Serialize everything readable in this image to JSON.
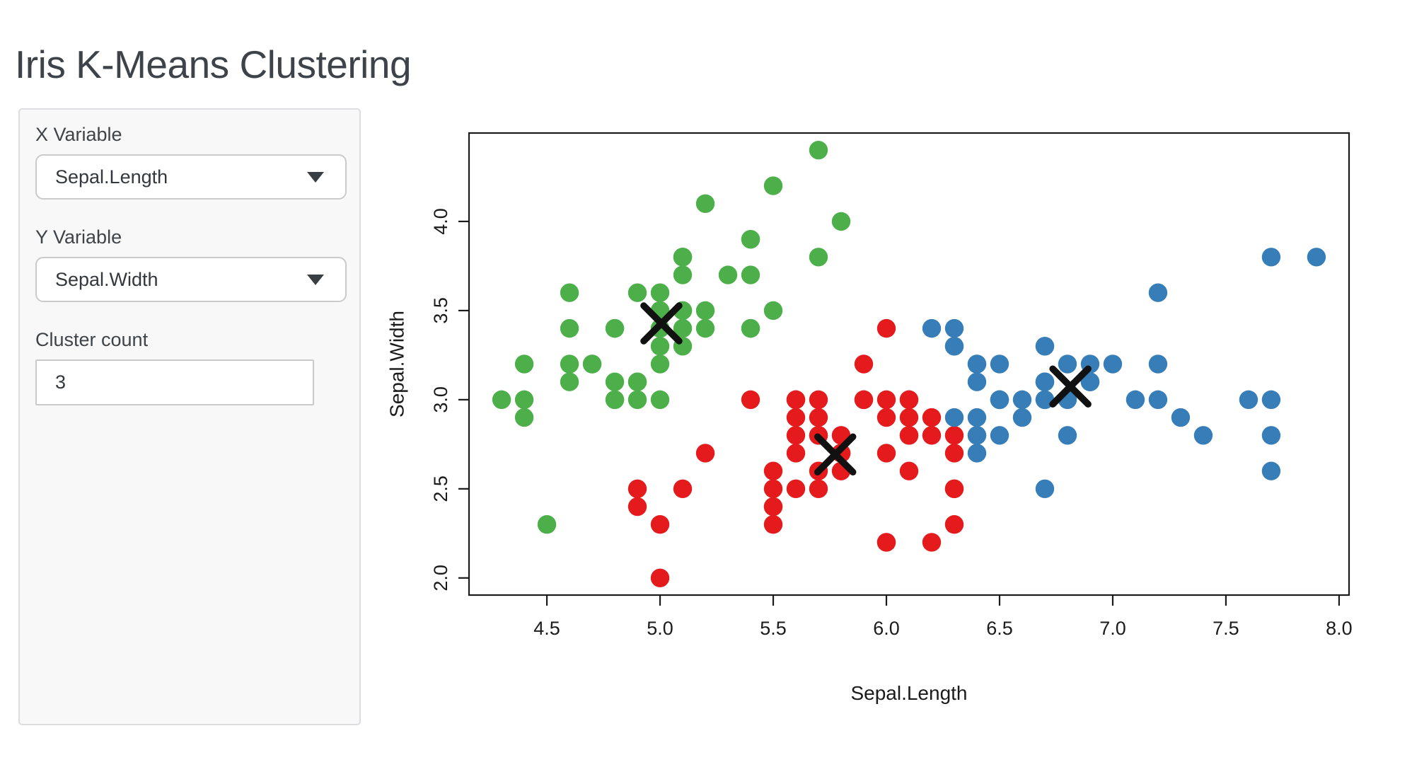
{
  "page": {
    "title": "Iris K-Means Clustering"
  },
  "sidebar": {
    "x_variable": {
      "label": "X Variable",
      "value": "Sepal.Length"
    },
    "y_variable": {
      "label": "Y Variable",
      "value": "Sepal.Width"
    },
    "cluster_count": {
      "label": "Cluster count",
      "value": "3"
    }
  },
  "chart_data": {
    "type": "scatter",
    "xlabel": "Sepal.Length",
    "ylabel": "Sepal.Width",
    "xlim": [
      4.156,
      8.044
    ],
    "ylim": [
      1.904,
      4.496
    ],
    "xticks": [
      4.5,
      5.0,
      5.5,
      6.0,
      6.5,
      7.0,
      7.5,
      8.0
    ],
    "yticks": [
      2.0,
      2.5,
      3.0,
      3.5,
      4.0
    ],
    "grid": false,
    "legend": "none",
    "point_radius_px": 13.2,
    "centroid_marker": {
      "shape": "x",
      "half_size_px": 25,
      "stroke_px": 9.5,
      "color": "#111111"
    },
    "axis_color": "#1b1b1b",
    "series": [
      {
        "name": "cluster-green",
        "color": "#4DAF4A",
        "center": [
          5.006,
          3.428
        ],
        "points": [
          [
            5.1,
            3.5
          ],
          [
            4.9,
            3.0
          ],
          [
            4.7,
            3.2
          ],
          [
            4.6,
            3.1
          ],
          [
            5.0,
            3.6
          ],
          [
            5.4,
            3.9
          ],
          [
            4.6,
            3.4
          ],
          [
            5.0,
            3.4
          ],
          [
            4.4,
            2.9
          ],
          [
            4.9,
            3.1
          ],
          [
            5.4,
            3.7
          ],
          [
            4.8,
            3.4
          ],
          [
            4.8,
            3.0
          ],
          [
            4.3,
            3.0
          ],
          [
            5.8,
            4.0
          ],
          [
            5.7,
            4.4
          ],
          [
            5.4,
            3.9
          ],
          [
            5.1,
            3.5
          ],
          [
            5.7,
            3.8
          ],
          [
            5.1,
            3.8
          ],
          [
            5.4,
            3.4
          ],
          [
            5.1,
            3.7
          ],
          [
            4.6,
            3.6
          ],
          [
            5.1,
            3.3
          ],
          [
            4.8,
            3.4
          ],
          [
            5.0,
            3.0
          ],
          [
            5.0,
            3.4
          ],
          [
            5.2,
            3.5
          ],
          [
            5.2,
            3.4
          ],
          [
            4.7,
            3.2
          ],
          [
            4.8,
            3.1
          ],
          [
            5.4,
            3.4
          ],
          [
            5.2,
            4.1
          ],
          [
            5.5,
            4.2
          ],
          [
            4.9,
            3.1
          ],
          [
            5.0,
            3.2
          ],
          [
            5.5,
            3.5
          ],
          [
            4.9,
            3.6
          ],
          [
            4.4,
            3.0
          ],
          [
            5.1,
            3.4
          ],
          [
            5.0,
            3.5
          ],
          [
            4.5,
            2.3
          ],
          [
            4.4,
            3.2
          ],
          [
            5.0,
            3.5
          ],
          [
            5.1,
            3.8
          ],
          [
            4.8,
            3.0
          ],
          [
            5.1,
            3.8
          ],
          [
            4.6,
            3.2
          ],
          [
            5.3,
            3.7
          ],
          [
            5.0,
            3.3
          ]
        ]
      },
      {
        "name": "cluster-red",
        "color": "#E41A1C",
        "center": [
          5.774,
          2.693
        ],
        "points": [
          [
            5.5,
            2.3
          ],
          [
            5.7,
            2.8
          ],
          [
            4.9,
            2.4
          ],
          [
            5.2,
            2.7
          ],
          [
            5.0,
            2.0
          ],
          [
            5.9,
            3.0
          ],
          [
            6.0,
            2.2
          ],
          [
            6.1,
            2.9
          ],
          [
            5.6,
            2.9
          ],
          [
            5.6,
            3.0
          ],
          [
            5.8,
            2.7
          ],
          [
            6.2,
            2.2
          ],
          [
            5.6,
            2.5
          ],
          [
            5.9,
            3.2
          ],
          [
            6.1,
            2.8
          ],
          [
            6.3,
            2.5
          ],
          [
            6.1,
            2.8
          ],
          [
            6.0,
            2.9
          ],
          [
            5.7,
            2.6
          ],
          [
            5.5,
            2.4
          ],
          [
            5.5,
            2.4
          ],
          [
            5.8,
            2.7
          ],
          [
            6.0,
            2.7
          ],
          [
            5.4,
            3.0
          ],
          [
            6.0,
            3.4
          ],
          [
            6.3,
            2.3
          ],
          [
            5.6,
            3.0
          ],
          [
            5.5,
            2.5
          ],
          [
            5.5,
            2.6
          ],
          [
            6.1,
            3.0
          ],
          [
            5.8,
            2.6
          ],
          [
            5.0,
            2.3
          ],
          [
            5.6,
            2.7
          ],
          [
            5.7,
            3.0
          ],
          [
            5.7,
            2.9
          ],
          [
            6.2,
            2.9
          ],
          [
            5.1,
            2.5
          ],
          [
            5.7,
            2.8
          ],
          [
            5.8,
            2.7
          ],
          [
            4.9,
            2.5
          ],
          [
            5.7,
            2.5
          ],
          [
            5.8,
            2.8
          ],
          [
            6.0,
            2.2
          ],
          [
            5.6,
            2.8
          ],
          [
            6.3,
            2.7
          ],
          [
            6.2,
            2.8
          ],
          [
            6.1,
            3.0
          ],
          [
            6.3,
            2.8
          ],
          [
            6.1,
            2.6
          ],
          [
            6.0,
            3.0
          ],
          [
            5.8,
            2.7
          ],
          [
            6.3,
            2.5
          ],
          [
            5.9,
            3.0
          ]
        ]
      },
      {
        "name": "cluster-blue",
        "color": "#377EB8",
        "center": [
          6.813,
          3.074
        ],
        "points": [
          [
            7.0,
            3.2
          ],
          [
            6.4,
            3.2
          ],
          [
            6.9,
            3.1
          ],
          [
            6.5,
            2.8
          ],
          [
            6.3,
            3.3
          ],
          [
            6.6,
            2.9
          ],
          [
            6.7,
            3.1
          ],
          [
            6.4,
            2.9
          ],
          [
            6.6,
            3.0
          ],
          [
            6.8,
            2.8
          ],
          [
            6.7,
            3.0
          ],
          [
            6.7,
            3.1
          ],
          [
            6.3,
            3.3
          ],
          [
            7.1,
            3.0
          ],
          [
            6.3,
            2.9
          ],
          [
            6.5,
            3.0
          ],
          [
            7.6,
            3.0
          ],
          [
            7.3,
            2.9
          ],
          [
            6.7,
            2.5
          ],
          [
            7.2,
            3.6
          ],
          [
            6.5,
            3.2
          ],
          [
            6.4,
            2.7
          ],
          [
            6.8,
            3.0
          ],
          [
            6.4,
            3.2
          ],
          [
            6.5,
            3.0
          ],
          [
            7.7,
            3.8
          ],
          [
            7.7,
            2.6
          ],
          [
            6.9,
            3.2
          ],
          [
            7.7,
            2.8
          ],
          [
            6.7,
            3.3
          ],
          [
            7.2,
            3.2
          ],
          [
            6.4,
            2.8
          ],
          [
            7.2,
            3.0
          ],
          [
            7.4,
            2.8
          ],
          [
            7.9,
            3.8
          ],
          [
            6.4,
            2.8
          ],
          [
            7.7,
            3.0
          ],
          [
            6.3,
            3.4
          ],
          [
            6.4,
            3.1
          ],
          [
            6.9,
            3.1
          ],
          [
            6.7,
            3.1
          ],
          [
            6.9,
            3.1
          ],
          [
            6.8,
            3.2
          ],
          [
            6.7,
            3.3
          ],
          [
            6.7,
            3.0
          ],
          [
            6.5,
            3.0
          ],
          [
            6.2,
            3.4
          ]
        ]
      }
    ]
  }
}
